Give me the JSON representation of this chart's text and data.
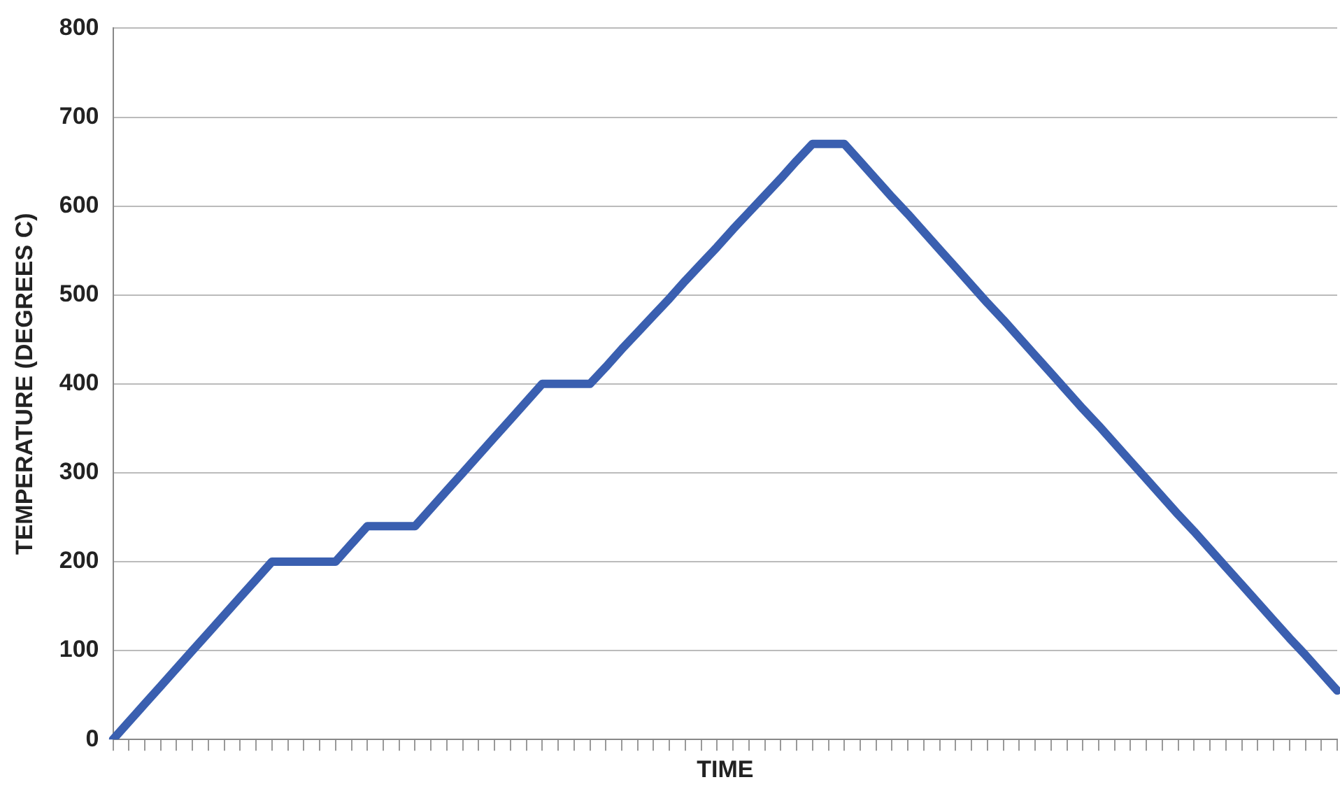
{
  "chart_data": {
    "type": "line",
    "xlabel": "TIME",
    "ylabel": "TEMPERATURE (DEGREES C)",
    "categories": [
      null,
      null,
      null,
      null,
      null,
      null,
      null,
      null,
      null,
      null,
      null,
      null,
      null,
      null,
      null,
      null,
      null,
      null,
      null,
      null,
      null,
      null,
      null,
      null,
      null,
      null,
      null,
      null,
      null,
      null,
      null,
      null,
      null,
      null,
      null,
      null,
      null,
      null,
      null,
      null,
      null,
      null,
      null,
      null,
      null,
      null,
      null,
      null,
      null,
      null,
      null,
      null,
      null,
      null,
      null,
      null,
      null,
      null,
      null,
      null,
      null,
      null,
      null,
      null,
      null,
      null,
      null,
      null,
      null,
      null,
      null,
      null,
      null,
      null,
      null,
      null,
      null,
      null
    ],
    "series": [
      {
        "color": "#3a5fb0",
        "values": [
          0,
          20,
          40,
          60,
          80,
          100,
          120,
          140,
          160,
          180,
          200,
          200,
          200,
          200,
          200,
          220,
          240,
          240,
          240,
          240,
          260,
          280,
          300,
          320,
          340,
          360,
          380,
          400,
          400,
          400,
          400,
          419,
          439,
          458,
          477,
          496,
          516,
          535,
          554,
          574,
          593,
          612,
          631,
          651,
          670,
          670,
          670,
          650,
          630,
          610,
          591,
          571,
          551,
          531,
          511,
          491,
          472,
          452,
          432,
          412,
          392,
          372,
          353,
          333,
          313,
          293,
          273,
          253,
          234,
          214,
          194,
          174,
          154,
          134,
          114,
          95,
          75,
          55
        ]
      }
    ],
    "ylim": [
      0,
      800
    ],
    "yticks": [
      0,
      100,
      200,
      300,
      400,
      500,
      600,
      700,
      800
    ],
    "grid": "y",
    "legend": false,
    "marker": "none",
    "line_style": "solid",
    "tick_labels": "y"
  }
}
